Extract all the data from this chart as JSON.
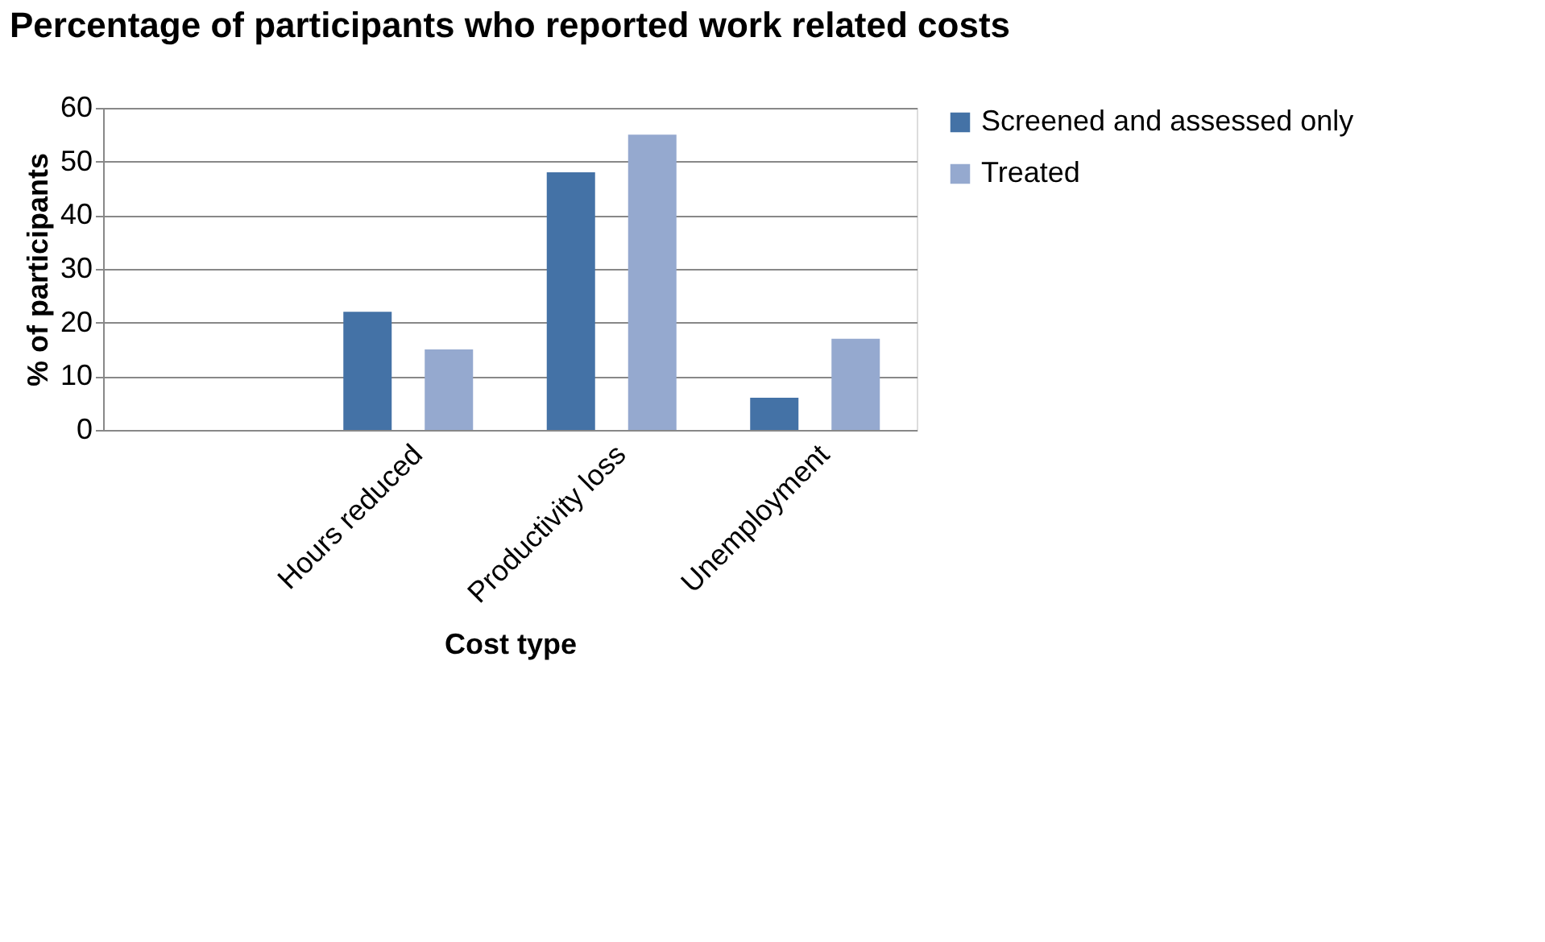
{
  "chart_data": {
    "type": "bar",
    "title": "Percentage of participants who reported work related costs",
    "xlabel": "Cost type",
    "ylabel": "% of participants",
    "categories": [
      null,
      "Hours reduced",
      "Productivity loss",
      "Unemployment"
    ],
    "series": [
      {
        "name": "Screened and assessed only",
        "color": "#4472a6",
        "values": [
          null,
          22,
          48,
          6
        ]
      },
      {
        "name": "Treated",
        "color": "#95a9cf",
        "values": [
          null,
          15,
          55,
          17
        ]
      }
    ],
    "ylim": [
      0,
      60
    ],
    "yticks": [
      0,
      10,
      20,
      30,
      40,
      50,
      60
    ],
    "grid": "y",
    "legend": "right"
  }
}
